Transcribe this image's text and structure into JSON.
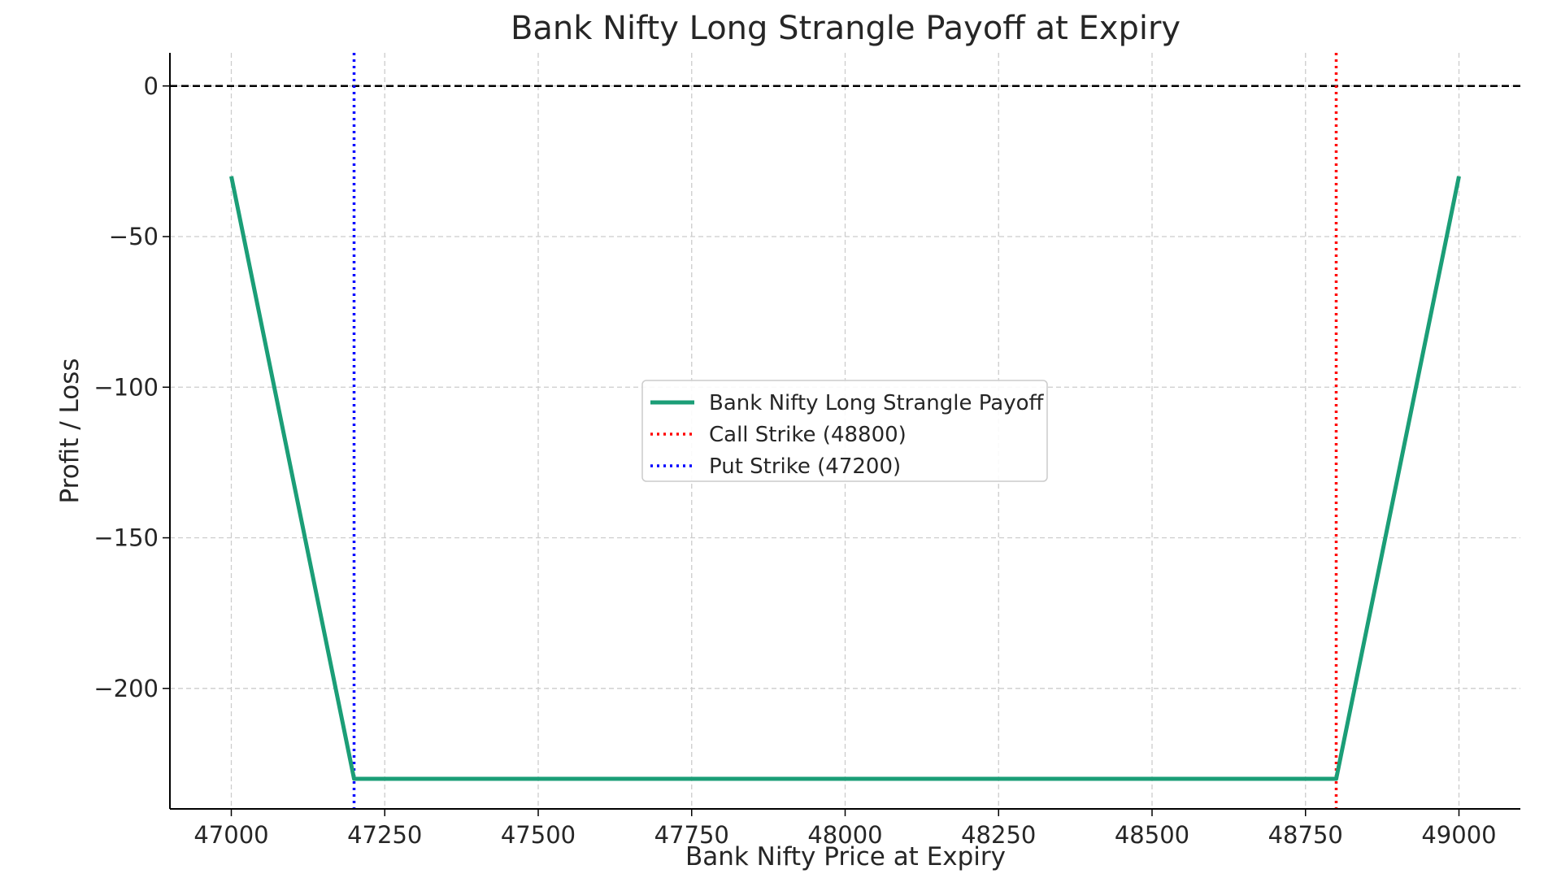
{
  "chart_data": {
    "type": "line",
    "title": "Bank Nifty Long Strangle Payoff at Expiry",
    "xlabel": "Bank Nifty Price at Expiry",
    "ylabel": "Profit / Loss",
    "xlim": [
      46900,
      49100
    ],
    "ylim": [
      -240,
      11
    ],
    "x_ticks": [
      47000,
      47250,
      47500,
      47750,
      48000,
      48250,
      48500,
      48750,
      49000
    ],
    "y_ticks": [
      0,
      -50,
      -100,
      -150,
      -200
    ],
    "x_tick_labels": [
      "47000",
      "47250",
      "47500",
      "47750",
      "48000",
      "48250",
      "48500",
      "48750",
      "49000"
    ],
    "y_tick_labels": [
      "0",
      "−50",
      "−100",
      "−150",
      "−200"
    ],
    "grid": true,
    "legend_position": "center",
    "series": [
      {
        "name": "Bank Nifty Long Strangle Payoff",
        "color": "#1b9e77",
        "style": "solid",
        "x": [
          47000,
          47200,
          48800,
          49000
        ],
        "y": [
          -30,
          -230,
          -230,
          -30
        ]
      }
    ],
    "reference_lines": [
      {
        "orientation": "horizontal",
        "value": 0,
        "color": "#000000",
        "style": "dashed"
      },
      {
        "orientation": "vertical",
        "value": 48800,
        "color": "#ff0000",
        "style": "dotted",
        "name": "Call Strike (48800)"
      },
      {
        "orientation": "vertical",
        "value": 47200,
        "color": "#0000ff",
        "style": "dotted",
        "name": "Put Strike (47200)"
      }
    ]
  }
}
